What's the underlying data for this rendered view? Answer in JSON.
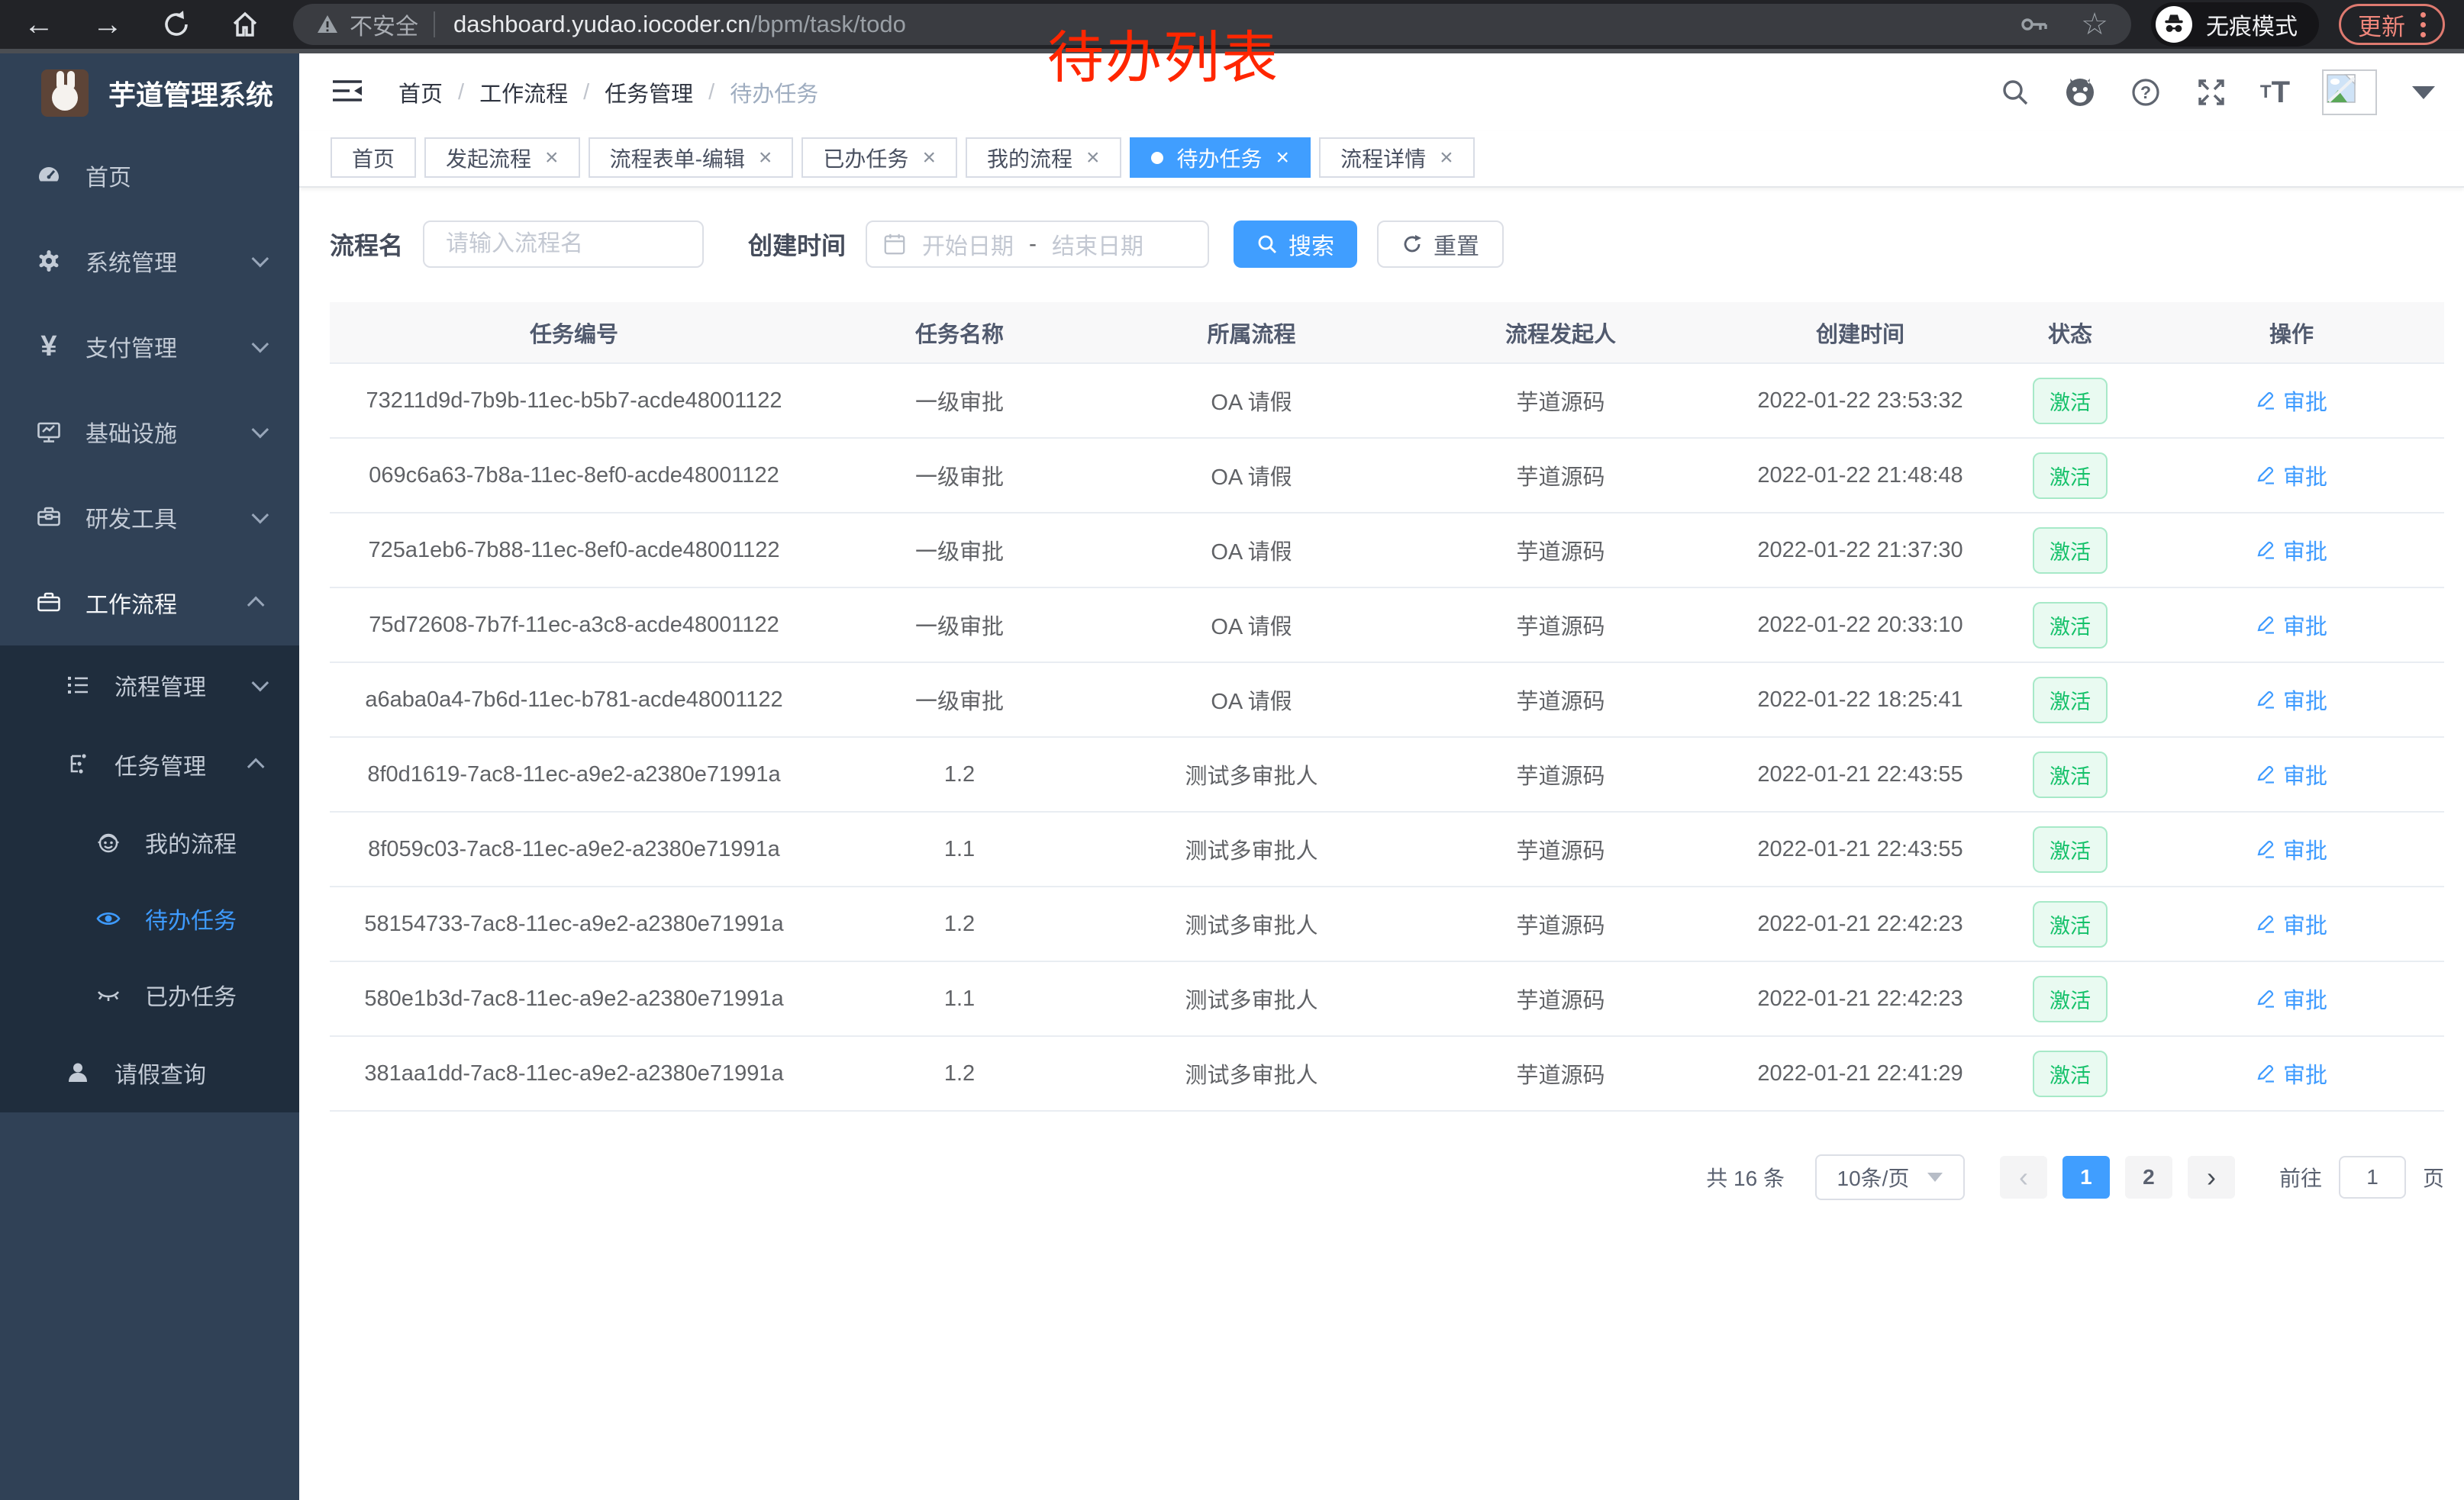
{
  "browser": {
    "security_label": "不安全",
    "url_host": "dashboard.yudao.iocoder.cn",
    "url_path": "/bpm/task/todo",
    "incognito_label": "无痕模式",
    "update_label": "更新"
  },
  "annotation": {
    "text": "待办列表",
    "color": "#ff2600"
  },
  "sidebar": {
    "title": "芋道管理系统",
    "items": [
      {
        "label": "首页",
        "icon": "dashboard-icon",
        "level": 1
      },
      {
        "label": "系统管理",
        "icon": "gear-icon",
        "level": 1,
        "chevron": "down"
      },
      {
        "label": "支付管理",
        "icon": "yen-icon",
        "level": 1,
        "chevron": "down"
      },
      {
        "label": "基础设施",
        "icon": "monitor-icon",
        "level": 1,
        "chevron": "down"
      },
      {
        "label": "研发工具",
        "icon": "toolbox-icon",
        "level": 1,
        "chevron": "down"
      },
      {
        "label": "工作流程",
        "icon": "briefcase-icon",
        "level": 1,
        "chevron": "up",
        "expanded": true
      },
      {
        "label": "流程管理",
        "icon": "list-icon",
        "level": 2,
        "chevron": "down"
      },
      {
        "label": "任务管理",
        "icon": "flow-icon",
        "level": 2,
        "chevron": "up",
        "expanded": true
      },
      {
        "label": "我的流程",
        "icon": "robot-icon",
        "level": 3
      },
      {
        "label": "待办任务",
        "icon": "eye-icon",
        "level": 3,
        "active": true
      },
      {
        "label": "已办任务",
        "icon": "eye-closed-icon",
        "level": 3
      },
      {
        "label": "请假查询",
        "icon": "user-icon",
        "level": 2
      }
    ]
  },
  "header": {
    "breadcrumb": [
      "首页",
      "工作流程",
      "任务管理",
      "待办任务"
    ]
  },
  "tabs": [
    {
      "label": "首页",
      "closable": false,
      "active": false
    },
    {
      "label": "发起流程",
      "closable": true,
      "active": false
    },
    {
      "label": "流程表单-编辑",
      "closable": true,
      "active": false
    },
    {
      "label": "已办任务",
      "closable": true,
      "active": false
    },
    {
      "label": "我的流程",
      "closable": true,
      "active": false
    },
    {
      "label": "待办任务",
      "closable": true,
      "active": true
    },
    {
      "label": "流程详情",
      "closable": true,
      "active": false
    }
  ],
  "filters": {
    "name_label": "流程名",
    "name_placeholder": "请输入流程名",
    "time_label": "创建时间",
    "start_placeholder": "开始日期",
    "range_separator": "-",
    "end_placeholder": "结束日期",
    "search_label": "搜索",
    "reset_label": "重置"
  },
  "table": {
    "columns": [
      "任务编号",
      "任务名称",
      "所属流程",
      "流程发起人",
      "创建时间",
      "状态",
      "操作"
    ],
    "rows": [
      {
        "id": "73211d9d-7b9b-11ec-b5b7-acde48001122",
        "name": "一级审批",
        "process": "OA 请假",
        "initiator": "芋道源码",
        "created": "2022-01-22 23:53:32",
        "status": "激活",
        "action": "审批"
      },
      {
        "id": "069c6a63-7b8a-11ec-8ef0-acde48001122",
        "name": "一级审批",
        "process": "OA 请假",
        "initiator": "芋道源码",
        "created": "2022-01-22 21:48:48",
        "status": "激活",
        "action": "审批"
      },
      {
        "id": "725a1eb6-7b88-11ec-8ef0-acde48001122",
        "name": "一级审批",
        "process": "OA 请假",
        "initiator": "芋道源码",
        "created": "2022-01-22 21:37:30",
        "status": "激活",
        "action": "审批"
      },
      {
        "id": "75d72608-7b7f-11ec-a3c8-acde48001122",
        "name": "一级审批",
        "process": "OA 请假",
        "initiator": "芋道源码",
        "created": "2022-01-22 20:33:10",
        "status": "激活",
        "action": "审批"
      },
      {
        "id": "a6aba0a4-7b6d-11ec-b781-acde48001122",
        "name": "一级审批",
        "process": "OA 请假",
        "initiator": "芋道源码",
        "created": "2022-01-22 18:25:41",
        "status": "激活",
        "action": "审批"
      },
      {
        "id": "8f0d1619-7ac8-11ec-a9e2-a2380e71991a",
        "name": "1.2",
        "process": "测试多审批人",
        "initiator": "芋道源码",
        "created": "2022-01-21 22:43:55",
        "status": "激活",
        "action": "审批"
      },
      {
        "id": "8f059c03-7ac8-11ec-a9e2-a2380e71991a",
        "name": "1.1",
        "process": "测试多审批人",
        "initiator": "芋道源码",
        "created": "2022-01-21 22:43:55",
        "status": "激活",
        "action": "审批"
      },
      {
        "id": "58154733-7ac8-11ec-a9e2-a2380e71991a",
        "name": "1.2",
        "process": "测试多审批人",
        "initiator": "芋道源码",
        "created": "2022-01-21 22:42:23",
        "status": "激活",
        "action": "审批"
      },
      {
        "id": "580e1b3d-7ac8-11ec-a9e2-a2380e71991a",
        "name": "1.1",
        "process": "测试多审批人",
        "initiator": "芋道源码",
        "created": "2022-01-21 22:42:23",
        "status": "激活",
        "action": "审批"
      },
      {
        "id": "381aa1dd-7ac8-11ec-a9e2-a2380e71991a",
        "name": "1.2",
        "process": "测试多审批人",
        "initiator": "芋道源码",
        "created": "2022-01-21 22:41:29",
        "status": "激活",
        "action": "审批"
      }
    ]
  },
  "pagination": {
    "total": "共 16 条",
    "page_size": "10条/页",
    "pages": [
      "1",
      "2"
    ],
    "active_page": "1",
    "goto_label": "前往",
    "goto_value": "1",
    "unit_label": "页"
  },
  "colors": {
    "accent": "#409eff",
    "success": "#13ce66",
    "sidebar_bg": "#304156",
    "sidebar_submenu_bg": "#1f2d3d",
    "annotation": "#ff2600"
  }
}
